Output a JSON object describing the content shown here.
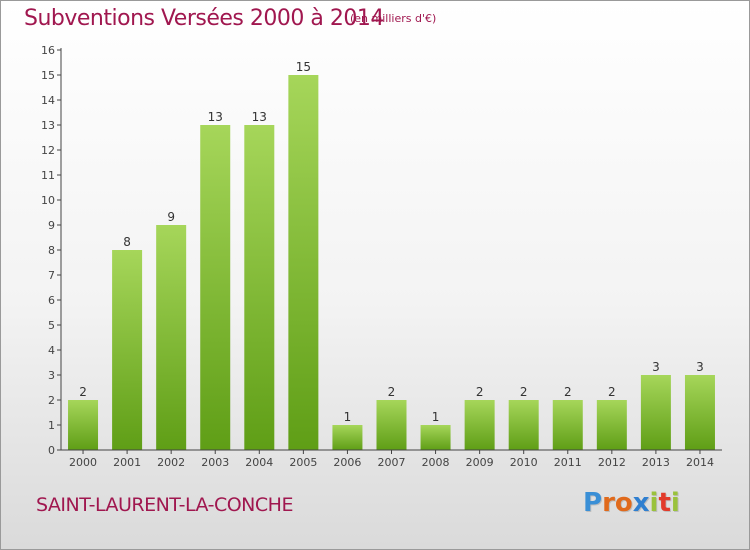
{
  "header": {
    "title": "Subventions Versées 2000 à 2014",
    "subtitle": "(en milliers d'€)"
  },
  "footer": {
    "commune": "SAINT-LAURENT-LA-CONCHE",
    "logo_text": "Proxiti",
    "logo_colors": [
      "#3a8fd6",
      "#e06a1c",
      "#e06a1c",
      "#2f7fd0",
      "#9ac23c",
      "#e23a2a",
      "#9ac23c"
    ]
  },
  "colors": {
    "bar_top": "#a6d65a",
    "bar_bottom": "#5f9e16",
    "text": "#a0174f",
    "axis": "#444444"
  },
  "chart_data": {
    "type": "bar",
    "categories": [
      "2000",
      "2001",
      "2002",
      "2003",
      "2004",
      "2005",
      "2006",
      "2007",
      "2008",
      "2009",
      "2010",
      "2011",
      "2012",
      "2013",
      "2014"
    ],
    "values": [
      2,
      8,
      9,
      13,
      13,
      15,
      1,
      2,
      1,
      2,
      2,
      2,
      2,
      3,
      3
    ],
    "title": "Subventions Versées 2000 à 2014",
    "subtitle": "(en milliers d'€)",
    "xlabel": "",
    "ylabel": "",
    "ylim": [
      0,
      16
    ],
    "yticks": [
      0,
      1,
      2,
      3,
      4,
      5,
      6,
      7,
      8,
      9,
      10,
      11,
      12,
      13,
      14,
      15,
      16
    ],
    "grid": false,
    "data_labels": true
  }
}
